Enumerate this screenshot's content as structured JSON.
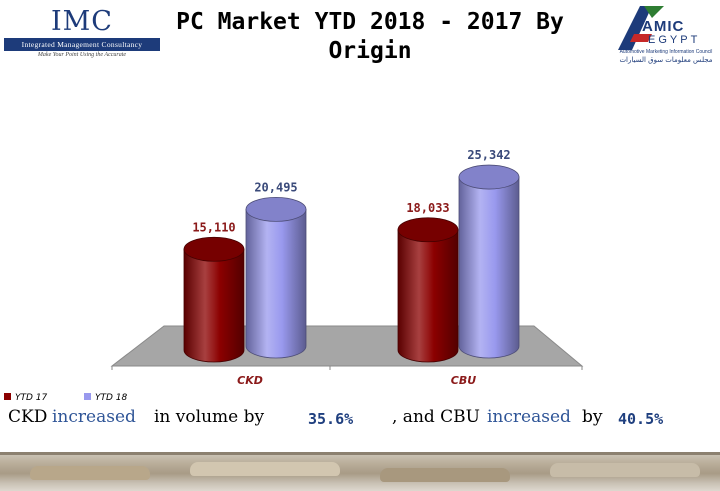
{
  "header": {
    "title_line1": "PC Market YTD 2018 - 2017 By",
    "title_line2": "Origin",
    "imc_logo": {
      "name": "IMC",
      "subtitle": "Integrated Management Consultancy",
      "tagline": "Make Your Point Using the Accurate"
    },
    "amic_logo": {
      "line1": "AMIC",
      "line2": "EGYPT",
      "subtitle": "Automotive Marketing Information Council",
      "arabic": "مجلس معلومات سوق السيارات"
    }
  },
  "chart_data": {
    "type": "bar",
    "categories": [
      "CKD",
      "CBU"
    ],
    "series": [
      {
        "name": "YTD 17",
        "values": [
          15110,
          18033
        ],
        "color": "#8b0000"
      },
      {
        "name": "YTD 18",
        "values": [
          20495,
          25342
        ],
        "color": "#9999ee"
      }
    ],
    "data_labels": [
      [
        "15,110",
        "18,033"
      ],
      [
        "20,495",
        "25,342"
      ]
    ],
    "ylim": [
      0,
      30000
    ],
    "grid": false,
    "legend": "bottom-left",
    "style": "3d-cylinder"
  },
  "summary": {
    "part1": "CKD",
    "part2": "increased",
    "part3": "in volume by",
    "ckd_pct": "35.6%",
    "part4": ", and CBU",
    "part5": "increased",
    "part6": "by",
    "cbu_pct": "40.5%"
  },
  "colors": {
    "ytd17": "#8b0000",
    "ytd18": "#9999ee",
    "floor": "#a6a6a6",
    "accent_text": "#2f5597"
  }
}
